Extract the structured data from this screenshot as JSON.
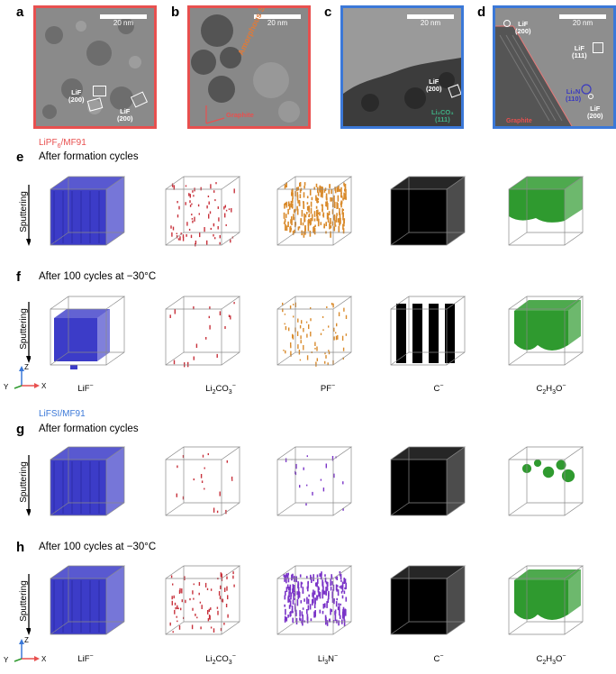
{
  "colors": {
    "red_frame": "#e8504f",
    "blue_frame": "#3b78d8",
    "lif": "#3c3cc8",
    "li2co3": "#c8323c",
    "pf": "#d98a2b",
    "c": "#000000",
    "c2h3o": "#2f9a2f",
    "li3n": "#7a34c8"
  },
  "panels_top": [
    {
      "letter": "a",
      "scale": "20 nm",
      "annotations": [
        "LiF\n(200)",
        "LiF\n(200)"
      ]
    },
    {
      "letter": "b",
      "scale": "20 nm",
      "annotations": [
        "Amorphous SEI",
        "Graphite"
      ]
    },
    {
      "letter": "c",
      "scale": "20 nm",
      "annotations": [
        "LiF\n(200)",
        "Li₂CO₃\n(111)"
      ]
    },
    {
      "letter": "d",
      "scale": "20 nm",
      "annotations": [
        "LiF\n(200)",
        "LiF\n(111)",
        "Li₃N\n(110)",
        "LiF\n(200)",
        "Graphite"
      ]
    }
  ],
  "electrolyte_1": {
    "prefix": "LiPF",
    "sub": "6",
    "suffix": "/MF91"
  },
  "electrolyte_2": "LiFSI/MF91",
  "rows": [
    {
      "letter": "e",
      "title": "After formation cycles"
    },
    {
      "letter": "f",
      "title": "After 100 cycles at −30°C"
    },
    {
      "letter": "g",
      "title": "After formation cycles"
    },
    {
      "letter": "h",
      "title": "After 100 cycles at −30°C"
    }
  ],
  "sputtering": "Sputtering",
  "ions_1": [
    {
      "base": "LiF",
      "sub": "",
      "rest": "",
      "sup": "−"
    },
    {
      "base": "Li",
      "sub": "2",
      "rest": "CO",
      "sub2": "3",
      "sup": "−"
    },
    {
      "base": "PF",
      "sub": "",
      "rest": "",
      "sup": "−"
    },
    {
      "base": "C",
      "sub": "",
      "rest": "",
      "sup": "−"
    },
    {
      "base": "C",
      "sub": "2",
      "rest": "H",
      "sub2": "3",
      "rest2": "O",
      "sup": "−"
    }
  ],
  "ions_2": [
    {
      "base": "LiF",
      "sub": "",
      "rest": "",
      "sup": "−"
    },
    {
      "base": "Li",
      "sub": "2",
      "rest": "CO",
      "sub2": "3",
      "sup": "−"
    },
    {
      "base": "Li",
      "sub": "3",
      "rest": "N",
      "sup": "−"
    },
    {
      "base": "C",
      "sub": "",
      "rest": "",
      "sup": "−"
    },
    {
      "base": "C",
      "sub": "2",
      "rest": "H",
      "sub2": "3",
      "rest2": "O",
      "sup": "−"
    }
  ],
  "axes": {
    "z": "Z",
    "y": "Y",
    "x": "X"
  },
  "cube_fill": {
    "e": [
      "lif-dense",
      "li2co3-sparse",
      "pf-medium",
      "c-full",
      "c2h3o-top"
    ],
    "f": [
      "lif-partial",
      "li2co3-trace",
      "pf-sparse",
      "c-columns",
      "c2h3o-medium"
    ],
    "g": [
      "lif-dense",
      "li2co3-trace",
      "li3n-trace",
      "c-full",
      "c2h3o-patches"
    ],
    "h": [
      "lif-dense",
      "li2co3-sparse",
      "li3n-medium",
      "c-full",
      "c2h3o-medium"
    ]
  }
}
